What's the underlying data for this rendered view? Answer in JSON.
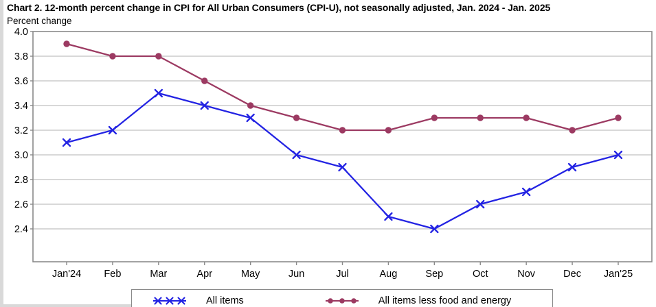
{
  "chart_data": {
    "type": "line",
    "title": "Chart 2. 12-month percent change in CPI for All Urban Consumers (CPI-U), not seasonally adjusted, Jan. 2024 - Jan. 2025",
    "ylabel": "Percent change",
    "xlabel": "",
    "categories": [
      "Jan'24",
      "Feb",
      "Mar",
      "Apr",
      "May",
      "Jun",
      "Jul",
      "Aug",
      "Sep",
      "Oct",
      "Nov",
      "Dec",
      "Jan'25"
    ],
    "series": [
      {
        "name": "All items",
        "color": "#2323e3",
        "marker": "x",
        "values": [
          3.1,
          3.2,
          3.5,
          3.4,
          3.3,
          3.0,
          2.9,
          2.5,
          2.4,
          2.6,
          2.7,
          2.9,
          3.0
        ]
      },
      {
        "name": "All items less food and energy",
        "color": "#9c3a62",
        "marker": "circle",
        "values": [
          3.9,
          3.8,
          3.8,
          3.6,
          3.4,
          3.3,
          3.2,
          3.2,
          3.3,
          3.3,
          3.3,
          3.2,
          3.3
        ]
      }
    ],
    "ylim": [
      2.13,
      4.0
    ],
    "y_ticks": [
      4.0,
      3.8,
      3.6,
      3.4,
      3.2,
      3.0,
      2.8,
      2.6,
      2.4
    ],
    "y_tick_labels": [
      "4.0",
      "3.8",
      "3.6",
      "3.4",
      "3.2",
      "3.0",
      "2.8",
      "2.6",
      "2.4"
    ],
    "grid": true,
    "legend_position": "bottom",
    "colors": {
      "grid": "#cbcbcb",
      "frame": "#8a8a8a",
      "text": "#000000",
      "edge_decoration": "#d9d9d9"
    }
  }
}
